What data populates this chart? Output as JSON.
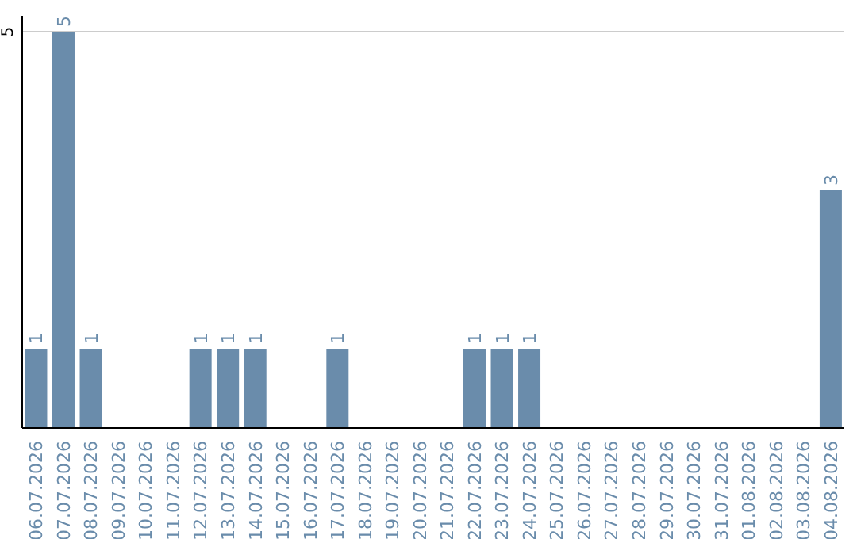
{
  "chart_data": {
    "type": "bar",
    "categories": [
      "06.07.2026",
      "07.07.2026",
      "08.07.2026",
      "09.07.2026",
      "10.07.2026",
      "11.07.2026",
      "12.07.2026",
      "13.07.2026",
      "14.07.2026",
      "15.07.2026",
      "16.07.2026",
      "17.07.2026",
      "18.07.2026",
      "19.07.2026",
      "20.07.2026",
      "21.07.2026",
      "22.07.2026",
      "23.07.2026",
      "24.07.2026",
      "25.07.2026",
      "26.07.2026",
      "27.07.2026",
      "28.07.2026",
      "29.07.2026",
      "30.07.2026",
      "31.07.2026",
      "01.08.2026",
      "02.08.2026",
      "03.08.2026",
      "04.08.2026"
    ],
    "values": [
      1,
      5,
      1,
      0,
      0,
      0,
      1,
      1,
      1,
      0,
      0,
      1,
      0,
      0,
      0,
      0,
      1,
      1,
      1,
      0,
      0,
      0,
      0,
      0,
      0,
      0,
      0,
      0,
      0,
      3
    ],
    "value_labels": [
      "1",
      "5",
      "1",
      null,
      null,
      null,
      "1",
      "1",
      "1",
      null,
      null,
      "1",
      null,
      null,
      null,
      null,
      "1",
      "1",
      "1",
      null,
      null,
      null,
      null,
      null,
      null,
      null,
      null,
      null,
      null,
      "3"
    ],
    "color": "#6a8cab",
    "ylim": [
      0,
      5.2
    ],
    "yticks": [
      5
    ],
    "grid": "y"
  }
}
